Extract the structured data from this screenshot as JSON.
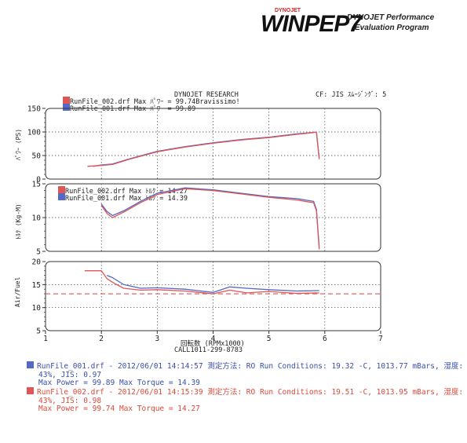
{
  "header": {
    "logo_small": "DYNOJET",
    "logo_main": "WINPEP7",
    "tagline_line1": "DYNOJET Performance",
    "tagline_line2": "Evaluation Program",
    "report_title": "DYNOJET  RESEARCH",
    "cf_label": "CF: JIS  ｽﾑｰｼﾞﾝｸﾞ: 5"
  },
  "colors": {
    "run1": "#5468c6",
    "run2": "#e05555",
    "target": "#e05555"
  },
  "legends": {
    "power": [
      "RunFile_002.drf Max ﾊﾟﾜｰ = 99.74",
      "RunFile_001.drf Max ﾊﾟﾜｰ = 99.89"
    ],
    "power_note": "Bravissimo!",
    "torque": [
      "RunFile_002.drf Max ﾄﾙｸ = 14.27",
      "RunFile_001.drf Max ﾄﾙｸ = 14.39"
    ]
  },
  "axes": {
    "power_ylabel": "ﾊﾟﾜｰ (PS)",
    "torque_ylabel": "ﾄﾙｸ (Kg-M)",
    "afr_ylabel": "Air/Fuel",
    "xlabel": "回転数 (RPMx1000)",
    "phone": "CALL1011-299-8783"
  },
  "runs": [
    {
      "line1": "RunFile_001.drf - 2012/06/01 14:14:57  測定方法: RO  Run Conditions: 19.32 -C, 1013.77 mBars,  湿度:",
      "line2": "43%, JIS: 0.97",
      "line3": "Max Power = 99.89  Max Torque = 14.39"
    },
    {
      "line1": "RunFile_002.drf - 2012/06/01 14:15:39  測定方法: RO  Run Conditions: 19.51 -C, 1013.95 mBars,  湿度:",
      "line2": "43%, JIS: 0.98",
      "line3": "Max Power = 99.74  Max Torque = 14.27"
    }
  ],
  "chart_data": [
    {
      "type": "line",
      "title": "",
      "xlabel": "",
      "ylabel": "ﾊﾟﾜｰ (PS)",
      "xlim": [
        1,
        7
      ],
      "ylim": [
        0,
        150
      ],
      "yticks": [
        0,
        50,
        100,
        150
      ],
      "grid": true,
      "legend": "top-left",
      "series": [
        {
          "name": "RunFile_002.drf",
          "color": "#e05555",
          "x": [
            1.75,
            2.0,
            2.2,
            2.5,
            3.0,
            3.5,
            4.0,
            4.5,
            5.0,
            5.5,
            5.75,
            5.85,
            5.9
          ],
          "y": [
            27,
            29,
            31,
            42,
            58,
            68,
            76,
            83,
            88,
            95,
            98,
            99.7,
            42
          ]
        },
        {
          "name": "RunFile_001.drf",
          "color": "#5468c6",
          "x": [
            1.85,
            2.0,
            2.2,
            2.5,
            3.0,
            3.5,
            4.0,
            4.5,
            5.0,
            5.5,
            5.75,
            5.85,
            5.9
          ],
          "y": [
            27,
            30,
            32,
            43,
            59,
            69,
            77,
            84,
            89,
            96,
            98.5,
            99.9,
            45
          ]
        }
      ]
    },
    {
      "type": "line",
      "title": "",
      "xlabel": "",
      "ylabel": "ﾄﾙｸ (Kg-M)",
      "xlim": [
        1,
        7
      ],
      "ylim": [
        5,
        15
      ],
      "yticks": [
        5,
        10,
        15
      ],
      "grid": true,
      "legend": "top-left",
      "series": [
        {
          "name": "RunFile_002.drf",
          "color": "#e05555",
          "x": [
            2.0,
            2.1,
            2.2,
            2.4,
            2.7,
            3.0,
            3.5,
            4.0,
            4.5,
            5.0,
            5.5,
            5.8,
            5.85,
            5.9
          ],
          "y": [
            11.8,
            10.6,
            10.0,
            10.8,
            12.2,
            13.4,
            14.27,
            14.0,
            13.5,
            13.0,
            12.6,
            12.2,
            11.0,
            5.3
          ]
        },
        {
          "name": "RunFile_001.drf",
          "color": "#5468c6",
          "x": [
            2.0,
            2.1,
            2.2,
            2.4,
            2.7,
            3.0,
            3.5,
            4.0,
            4.5,
            5.0,
            5.5,
            5.8,
            5.85,
            5.9
          ],
          "y": [
            12.0,
            10.9,
            10.3,
            11.0,
            12.4,
            13.6,
            14.39,
            14.1,
            13.6,
            13.1,
            12.8,
            12.4,
            11.2,
            5.6
          ]
        }
      ]
    },
    {
      "type": "line",
      "title": "",
      "xlabel": "回転数 (RPMx1000)",
      "ylabel": "Air/Fuel",
      "xlim": [
        1,
        7
      ],
      "ylim": [
        5,
        20
      ],
      "xticks": [
        1,
        2,
        3,
        4,
        5,
        6,
        7
      ],
      "yticks": [
        5,
        10,
        15,
        20
      ],
      "grid": true,
      "series": [
        {
          "name": "RunFile_002.drf",
          "color": "#e05555",
          "x": [
            1.7,
            2.0,
            2.1,
            2.2,
            2.4,
            2.7,
            3.0,
            3.5,
            4.0,
            4.3,
            4.6,
            5.0,
            5.5,
            5.9
          ],
          "y": [
            18,
            18,
            16.3,
            15.5,
            14.2,
            13.8,
            13.9,
            13.6,
            13.0,
            13.8,
            13.2,
            13.5,
            13.1,
            13.2
          ]
        },
        {
          "name": "RunFile_001.drf",
          "color": "#5468c6",
          "x": [
            2.1,
            2.2,
            2.4,
            2.7,
            3.0,
            3.5,
            4.0,
            4.3,
            4.6,
            5.0,
            5.5,
            5.9
          ],
          "y": [
            17.0,
            16.5,
            15.0,
            14.2,
            14.3,
            14.0,
            13.3,
            14.5,
            14.2,
            13.9,
            13.6,
            13.7
          ]
        }
      ],
      "reference_lines": [
        {
          "y": 13.0,
          "color": "#e05555",
          "style": "dashed"
        }
      ]
    }
  ]
}
